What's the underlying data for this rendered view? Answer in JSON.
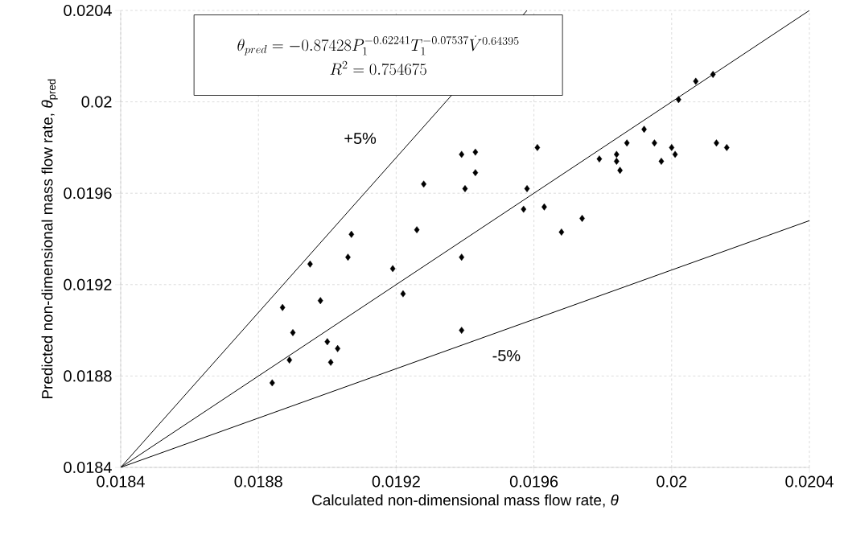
{
  "chart_data": {
    "type": "scatter",
    "xlabel": "Calculated non-dimensional mass flow rate, *θ*",
    "ylabel": "Predicted non-dimensional mass flow rate, *θ*$_{pred}$",
    "annotations": [
      "\\theta_{pred} = -0.87428P_1^{-0.62241}T_1^{-0.07537}\\dot{V}^{0.64395}",
      "R^2 = 0.754675"
    ],
    "xlim": [
      0.0184,
      0.0204
    ],
    "ylim": [
      0.0184,
      0.0204
    ],
    "xticks": [
      0.0184,
      0.0188,
      0.0192,
      0.0196,
      0.02,
      0.0204
    ],
    "yticks": [
      0.0184,
      0.0188,
      0.0192,
      0.0196,
      0.02,
      0.0204
    ],
    "grid": true,
    "series": [
      {
        "color": "#000000",
        "marker": "diamond",
        "x": [
          0.01907,
          0.01926,
          0.01906,
          0.01895,
          0.01919,
          0.01939,
          0.01887,
          0.01898,
          0.01922,
          0.0189,
          0.01939,
          0.019,
          0.01903,
          0.01889,
          0.01901,
          0.01884,
          0.01939,
          0.01943,
          0.01943,
          0.0194,
          0.01961,
          0.01958,
          0.01957,
          0.01963,
          0.01974,
          0.01968,
          0.01979,
          0.01984,
          0.01984,
          0.01985,
          0.01987,
          0.01992,
          0.01995,
          0.01997,
          0.02,
          0.02001,
          0.02013,
          0.02016,
          0.02002,
          0.02007,
          0.02012,
          0.01928
        ],
        "values": [
          0.01942,
          0.01944,
          0.01932,
          0.01929,
          0.01927,
          0.01932,
          0.0191,
          0.01913,
          0.01916,
          0.01899,
          0.019,
          0.01895,
          0.01892,
          0.01887,
          0.01886,
          0.01877,
          0.01977,
          0.01978,
          0.01969,
          0.01962,
          0.0198,
          0.01962,
          0.01953,
          0.01954,
          0.01949,
          0.01943,
          0.01975,
          0.01977,
          0.01974,
          0.0197,
          0.01982,
          0.01988,
          0.01982,
          0.01974,
          0.0198,
          0.01977,
          0.01982,
          0.0198,
          0.02001,
          0.02009,
          0.02012,
          0.01964
        ]
      },
      {
        "type": "line",
        "name": "+5%",
        "color": "#000000",
        "marker": "none",
        "line_style": "solid",
        "x": [
          0.0184,
          0.01958
        ],
        "values": [
          0.0184,
          0.0204
        ]
      },
      {
        "type": "line",
        "color": "#000000",
        "marker": "none",
        "line_style": "solid",
        "x": [
          0.0184,
          0.0204
        ],
        "values": [
          0.0184,
          0.0204
        ]
      },
      {
        "type": "line",
        "name": "-5%",
        "color": "#000000",
        "marker": "none",
        "line_style": "solid",
        "x": [
          0.0184,
          0.0204
        ],
        "values": [
          0.0184,
          0.01948
        ]
      }
    ]
  }
}
